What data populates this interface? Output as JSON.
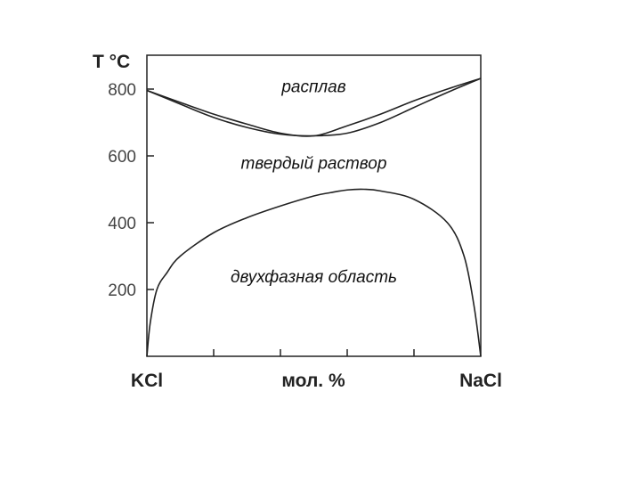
{
  "chart_data": {
    "type": "line",
    "title": "",
    "ylabel": "T °C",
    "xlabel": "мол. %",
    "x_left_label": "KCl",
    "x_right_label": "NaCl",
    "xlim": [
      0,
      100
    ],
    "ylim": [
      0,
      900
    ],
    "yticks": [
      800,
      600,
      400,
      200
    ],
    "xticks": [
      0,
      20,
      40,
      60,
      80,
      100
    ],
    "grid": false,
    "regions": [
      {
        "label": "расплав",
        "x": 50,
        "y": 810
      },
      {
        "label": "твердый раствор",
        "x": 50,
        "y": 580
      },
      {
        "label": "двухфазная область",
        "x": 50,
        "y": 240
      }
    ],
    "series": [
      {
        "x": [
          0,
          10,
          20,
          30,
          40,
          50,
          60,
          70,
          80,
          90,
          100
        ],
        "values": [
          796,
          760,
          725,
          695,
          668,
          660,
          690,
          725,
          765,
          800,
          832
        ]
      },
      {
        "x": [
          0,
          10,
          20,
          30,
          40,
          50,
          60,
          70,
          80,
          90,
          100
        ],
        "values": [
          796,
          755,
          715,
          685,
          665,
          660,
          668,
          700,
          745,
          790,
          832
        ]
      },
      {
        "x": [
          0,
          1,
          3,
          6,
          10,
          20,
          30,
          40,
          50,
          55,
          60,
          65,
          70,
          80,
          90,
          95,
          98,
          100
        ],
        "values": [
          0,
          100,
          200,
          250,
          300,
          370,
          415,
          450,
          480,
          490,
          498,
          500,
          495,
          470,
          400,
          300,
          150,
          0
        ]
      }
    ]
  }
}
